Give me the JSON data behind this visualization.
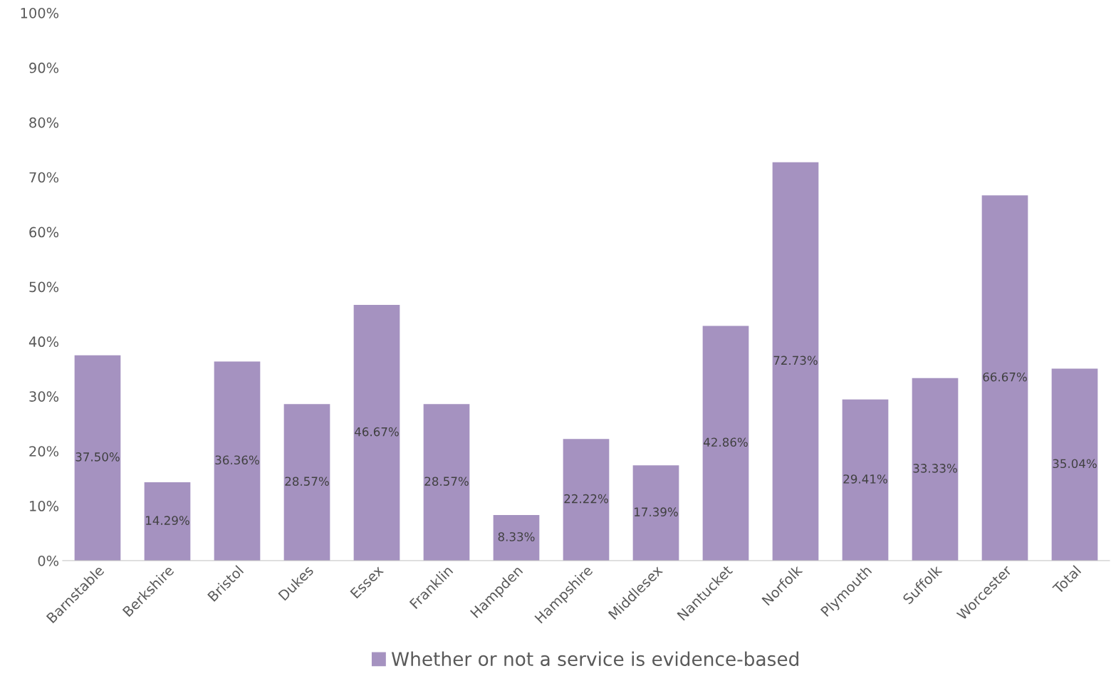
{
  "chart_data": {
    "type": "bar",
    "categories": [
      "Barnstable",
      "Berkshire",
      "Bristol",
      "Dukes",
      "Essex",
      "Franklin",
      "Hampden",
      "Hampshire",
      "Middlesex",
      "Nantucket",
      "Norfolk",
      "Plymouth",
      "Suffolk",
      "Worcester",
      "Total"
    ],
    "series": [
      {
        "name": "Whether or not a service is evidence-based",
        "color": "#a592c0",
        "values": [
          37.5,
          14.29,
          36.36,
          28.57,
          46.67,
          28.57,
          8.33,
          22.22,
          17.39,
          42.86,
          72.73,
          29.41,
          33.33,
          66.67,
          35.04
        ],
        "value_labels": [
          "37.50%",
          "14.29%",
          "36.36%",
          "28.57%",
          "46.67%",
          "28.57%",
          "8.33%",
          "22.22%",
          "17.39%",
          "42.86%",
          "72.73%",
          "29.41%",
          "33.33%",
          "66.67%",
          "35.04%"
        ]
      }
    ],
    "ylim": [
      0,
      100
    ],
    "yticks": [
      {
        "value": 0,
        "label": "0%"
      },
      {
        "value": 10,
        "label": "10%"
      },
      {
        "value": 20,
        "label": "20%"
      },
      {
        "value": 30,
        "label": "30%"
      },
      {
        "value": 40,
        "label": "40%"
      },
      {
        "value": 50,
        "label": "50%"
      },
      {
        "value": 60,
        "label": "60%"
      },
      {
        "value": 70,
        "label": "70%"
      },
      {
        "value": 80,
        "label": "80%"
      },
      {
        "value": 90,
        "label": "90%"
      },
      {
        "value": 100,
        "label": "100%"
      }
    ],
    "grid": false,
    "legend": "bottom"
  }
}
